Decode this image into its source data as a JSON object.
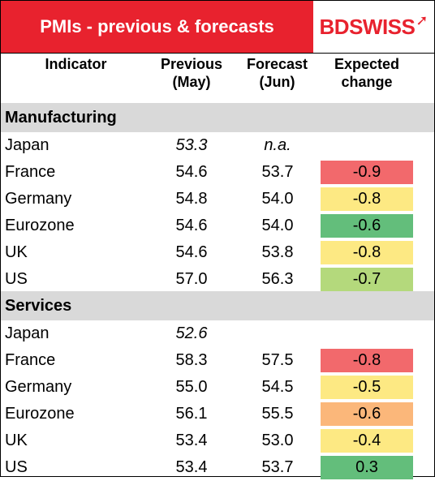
{
  "title": "PMIs - previous & forecasts",
  "logo": {
    "bd": "BD",
    "swiss": "SWISS"
  },
  "headers": {
    "indicator": "Indicator",
    "previous": [
      "Previous",
      "(May)"
    ],
    "forecast": [
      "Forecast",
      "(Jun)"
    ],
    "change": [
      "Expected",
      "change"
    ]
  },
  "sections": [
    {
      "name": "Manufacturing",
      "rows": [
        {
          "indicator": "Japan",
          "previous": "53.3",
          "forecast": "n.a.",
          "change": "",
          "color": ""
        },
        {
          "indicator": "France",
          "previous": "54.6",
          "forecast": "53.7",
          "change": "-0.9",
          "color": "#f2696c"
        },
        {
          "indicator": "Germany",
          "previous": "54.8",
          "forecast": "54.0",
          "change": "-0.8",
          "color": "#fde983"
        },
        {
          "indicator": "Eurozone",
          "previous": "54.6",
          "forecast": "54.0",
          "change": "-0.6",
          "color": "#63be7b"
        },
        {
          "indicator": "UK",
          "previous": "54.6",
          "forecast": "53.8",
          "change": "-0.8",
          "color": "#fde983"
        },
        {
          "indicator": "US",
          "previous": "57.0",
          "forecast": "56.3",
          "change": "-0.7",
          "color": "#b4d97c"
        }
      ]
    },
    {
      "name": "Services",
      "rows": [
        {
          "indicator": "Japan",
          "previous": "52.6",
          "forecast": "",
          "change": "",
          "color": ""
        },
        {
          "indicator": "France",
          "previous": "58.3",
          "forecast": "57.5",
          "change": "-0.8",
          "color": "#f2696c"
        },
        {
          "indicator": "Germany",
          "previous": "55.0",
          "forecast": "54.5",
          "change": "-0.5",
          "color": "#fde983"
        },
        {
          "indicator": "Eurozone",
          "previous": "56.1",
          "forecast": "55.5",
          "change": "-0.6",
          "color": "#fbb77a"
        },
        {
          "indicator": "UK",
          "previous": "53.4",
          "forecast": "53.0",
          "change": "-0.4",
          "color": "#fde983"
        },
        {
          "indicator": "US",
          "previous": "53.4",
          "forecast": "53.7",
          "change": "0.3",
          "color": "#63be7b"
        }
      ]
    }
  ]
}
